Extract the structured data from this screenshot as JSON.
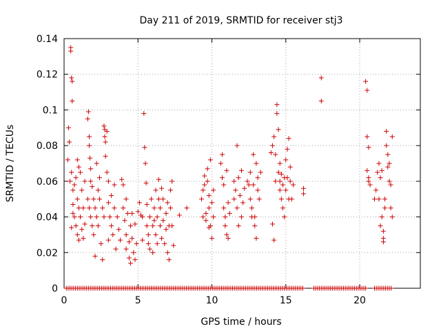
{
  "chart_data": {
    "type": "scatter",
    "title": "Day 211 of 2019, SRMTID for receiver stj3",
    "xlabel": "GPS time / hours",
    "ylabel": "SRMTID / TECUs",
    "xlim": [
      0,
      24.1
    ],
    "ylim": [
      0,
      0.14
    ],
    "x_ticks": [
      0,
      5,
      10,
      15,
      20
    ],
    "y_ticks": [
      0,
      0.02,
      0.04,
      0.06,
      0.08,
      0.1,
      0.12,
      0.14
    ],
    "x_tick_labels": [
      "0",
      "5",
      "10",
      "15",
      "20"
    ],
    "y_tick_labels": [
      "0",
      "0.02",
      "0.04",
      "0.06",
      "0.08",
      "0.1",
      "0.12",
      "0.14"
    ],
    "grid": true,
    "marker": "plus",
    "color": "#cc0000",
    "series": [
      {
        "name": "SRMTID",
        "points": [
          [
            0.25,
            0.072
          ],
          [
            0.3,
            0.09
          ],
          [
            0.35,
            0.082
          ],
          [
            0.45,
            0.133
          ],
          [
            0.45,
            0.135
          ],
          [
            0.5,
            0.118
          ],
          [
            0.55,
            0.116
          ],
          [
            0.55,
            0.105
          ],
          [
            0.4,
            0.06
          ],
          [
            0.5,
            0.065
          ],
          [
            0.6,
            0.055
          ],
          [
            0.6,
            0.047
          ],
          [
            0.7,
            0.058
          ],
          [
            0.7,
            0.04
          ],
          [
            0.8,
            0.062
          ],
          [
            0.8,
            0.035
          ],
          [
            0.9,
            0.05
          ],
          [
            0.9,
            0.03
          ],
          [
            1.0,
            0.045
          ],
          [
            1.0,
            0.027
          ],
          [
            1.1,
            0.04
          ],
          [
            1.1,
            0.065
          ],
          [
            1.2,
            0.033
          ],
          [
            1.2,
            0.055
          ],
          [
            1.3,
            0.045
          ],
          [
            1.3,
            0.028
          ],
          [
            0.5,
            0.034
          ],
          [
            0.6,
            0.042
          ],
          [
            0.9,
            0.072
          ],
          [
            1.0,
            0.068
          ],
          [
            1.4,
            0.036
          ],
          [
            1.4,
            0.06
          ],
          [
            1.6,
            0.095
          ],
          [
            1.65,
            0.099
          ],
          [
            1.7,
            0.085
          ],
          [
            1.7,
            0.08
          ],
          [
            1.75,
            0.073
          ],
          [
            1.8,
            0.067
          ],
          [
            1.8,
            0.06
          ],
          [
            1.9,
            0.057
          ],
          [
            1.6,
            0.05
          ],
          [
            1.7,
            0.045
          ],
          [
            1.8,
            0.04
          ],
          [
            1.9,
            0.035
          ],
          [
            2.0,
            0.05
          ],
          [
            2.0,
            0.03
          ],
          [
            2.1,
            0.045
          ],
          [
            2.1,
            0.018
          ],
          [
            2.2,
            0.04
          ],
          [
            2.3,
            0.055
          ],
          [
            2.3,
            0.035
          ],
          [
            2.4,
            0.05
          ],
          [
            2.5,
            0.025
          ],
          [
            2.6,
            0.045
          ],
          [
            2.6,
            0.016
          ],
          [
            2.7,
            0.04
          ],
          [
            2.7,
            0.091
          ],
          [
            2.75,
            0.089
          ],
          [
            2.75,
            0.085
          ],
          [
            2.8,
            0.082
          ],
          [
            2.9,
            0.088
          ],
          [
            2.8,
            0.074
          ],
          [
            2.9,
            0.065
          ],
          [
            3.0,
            0.06
          ],
          [
            3.0,
            0.048
          ],
          [
            3.1,
            0.04
          ],
          [
            3.2,
            0.035
          ],
          [
            3.2,
            0.052
          ],
          [
            3.3,
            0.03
          ],
          [
            3.4,
            0.045
          ],
          [
            3.5,
            0.022
          ],
          [
            3.6,
            0.04
          ],
          [
            3.7,
            0.033
          ],
          [
            3.8,
            0.027
          ],
          [
            3.9,
            0.061
          ],
          [
            4.0,
            0.058
          ],
          [
            4.0,
            0.045
          ],
          [
            4.1,
            0.038
          ],
          [
            4.2,
            0.05
          ],
          [
            4.2,
            0.03
          ],
          [
            4.3,
            0.042
          ],
          [
            4.4,
            0.026
          ],
          [
            4.4,
            0.017
          ],
          [
            4.5,
            0.035
          ],
          [
            4.5,
            0.014
          ],
          [
            4.6,
            0.028
          ],
          [
            4.7,
            0.02
          ],
          [
            4.8,
            0.036
          ],
          [
            4.8,
            0.016
          ],
          [
            4.9,
            0.025
          ],
          [
            4.6,
            0.042
          ],
          [
            4.2,
            0.022
          ],
          [
            3.4,
            0.058
          ],
          [
            3.0,
            0.027
          ],
          [
            2.4,
            0.062
          ],
          [
            2.2,
            0.07
          ],
          [
            5.0,
            0.043
          ],
          [
            5.1,
            0.048
          ],
          [
            5.2,
            0.041
          ],
          [
            5.3,
            0.04
          ],
          [
            5.4,
            0.098
          ],
          [
            5.45,
            0.079
          ],
          [
            5.5,
            0.07
          ],
          [
            5.55,
            0.059
          ],
          [
            5.3,
            0.027
          ],
          [
            5.6,
            0.035
          ],
          [
            5.6,
            0.047
          ],
          [
            5.7,
            0.03
          ],
          [
            5.7,
            0.025
          ],
          [
            5.8,
            0.04
          ],
          [
            5.8,
            0.022
          ],
          [
            5.9,
            0.05
          ],
          [
            6.0,
            0.035
          ],
          [
            6.0,
            0.02
          ],
          [
            6.1,
            0.045
          ],
          [
            6.2,
            0.03
          ],
          [
            6.2,
            0.055
          ],
          [
            6.3,
            0.04
          ],
          [
            6.3,
            0.025
          ],
          [
            6.4,
            0.05
          ],
          [
            6.4,
            0.061
          ],
          [
            6.5,
            0.035
          ],
          [
            6.5,
            0.045
          ],
          [
            6.6,
            0.028
          ],
          [
            6.7,
            0.038
          ],
          [
            6.7,
            0.05
          ],
          [
            6.8,
            0.025
          ],
          [
            6.9,
            0.042
          ],
          [
            6.9,
            0.033
          ],
          [
            7.0,
            0.02
          ],
          [
            7.0,
            0.048
          ],
          [
            7.1,
            0.035
          ],
          [
            7.1,
            0.016
          ],
          [
            7.2,
            0.045
          ],
          [
            7.2,
            0.055
          ],
          [
            7.3,
            0.035
          ],
          [
            7.3,
            0.06
          ],
          [
            7.4,
            0.024
          ],
          [
            6.1,
            0.038
          ],
          [
            6.6,
            0.056
          ],
          [
            7.8,
            0.041
          ],
          [
            8.3,
            0.045
          ],
          [
            9.3,
            0.05
          ],
          [
            9.4,
            0.055
          ],
          [
            9.5,
            0.058
          ],
          [
            9.5,
            0.063
          ],
          [
            9.6,
            0.042
          ],
          [
            9.7,
            0.067
          ],
          [
            9.7,
            0.06
          ],
          [
            9.8,
            0.052
          ],
          [
            9.8,
            0.045
          ],
          [
            9.9,
            0.072
          ],
          [
            9.9,
            0.035
          ],
          [
            10.0,
            0.048
          ],
          [
            10.0,
            0.028
          ],
          [
            10.1,
            0.04
          ],
          [
            10.1,
            0.055
          ],
          [
            9.4,
            0.04
          ],
          [
            9.6,
            0.038
          ],
          [
            9.8,
            0.034
          ],
          [
            10.6,
            0.07
          ],
          [
            10.7,
            0.075
          ],
          [
            10.7,
            0.062
          ],
          [
            10.8,
            0.058
          ],
          [
            10.8,
            0.045
          ],
          [
            10.9,
            0.04
          ],
          [
            10.9,
            0.035
          ],
          [
            11.0,
            0.03
          ],
          [
            11.0,
            0.066
          ],
          [
            11.1,
            0.048
          ],
          [
            11.1,
            0.028
          ],
          [
            11.2,
            0.042
          ],
          [
            11.5,
            0.06
          ],
          [
            11.5,
            0.05
          ],
          [
            11.6,
            0.055
          ],
          [
            11.7,
            0.08
          ],
          [
            11.7,
            0.045
          ],
          [
            11.8,
            0.062
          ],
          [
            11.8,
            0.035
          ],
          [
            11.9,
            0.052
          ],
          [
            12.0,
            0.066
          ],
          [
            12.0,
            0.04
          ],
          [
            12.1,
            0.048
          ],
          [
            12.2,
            0.056
          ],
          [
            12.4,
            0.06
          ],
          [
            12.6,
            0.065
          ],
          [
            12.6,
            0.05
          ],
          [
            12.7,
            0.045
          ],
          [
            12.8,
            0.058
          ],
          [
            12.8,
            0.075
          ],
          [
            12.9,
            0.04
          ],
          [
            12.9,
            0.035
          ],
          [
            13.0,
            0.07
          ],
          [
            13.0,
            0.028
          ],
          [
            13.1,
            0.062
          ],
          [
            13.1,
            0.055
          ],
          [
            13.2,
            0.05
          ],
          [
            13.3,
            0.065
          ],
          [
            12.7,
            0.04
          ],
          [
            12.5,
            0.058
          ],
          [
            14.0,
            0.076
          ],
          [
            14.1,
            0.08
          ],
          [
            14.1,
            0.036
          ],
          [
            14.2,
            0.027
          ],
          [
            14.2,
            0.085
          ],
          [
            14.3,
            0.075
          ],
          [
            14.4,
            0.103
          ],
          [
            14.4,
            0.098
          ],
          [
            14.5,
            0.089
          ],
          [
            14.5,
            0.065
          ],
          [
            14.6,
            0.06
          ],
          [
            14.6,
            0.055
          ],
          [
            14.7,
            0.05
          ],
          [
            14.7,
            0.064
          ],
          [
            14.8,
            0.058
          ],
          [
            14.8,
            0.045
          ],
          [
            14.9,
            0.062
          ],
          [
            14.9,
            0.04
          ],
          [
            15.0,
            0.072
          ],
          [
            15.0,
            0.055
          ],
          [
            15.1,
            0.078
          ],
          [
            15.1,
            0.062
          ],
          [
            15.2,
            0.084
          ],
          [
            15.2,
            0.05
          ],
          [
            15.3,
            0.068
          ],
          [
            15.3,
            0.06
          ],
          [
            15.4,
            0.05
          ],
          [
            15.5,
            0.058
          ],
          [
            16.2,
            0.056
          ],
          [
            16.2,
            0.053
          ],
          [
            14.3,
            0.06
          ],
          [
            14.6,
            0.07
          ],
          [
            17.4,
            0.118
          ],
          [
            17.4,
            0.105
          ],
          [
            20.4,
            0.116
          ],
          [
            20.5,
            0.111
          ],
          [
            20.5,
            0.085
          ],
          [
            20.6,
            0.079
          ],
          [
            20.5,
            0.066
          ],
          [
            20.6,
            0.062
          ],
          [
            20.6,
            0.06
          ],
          [
            20.7,
            0.058
          ],
          [
            21.0,
            0.05
          ],
          [
            21.1,
            0.055
          ],
          [
            21.2,
            0.065
          ],
          [
            21.3,
            0.07
          ],
          [
            21.4,
            0.062
          ],
          [
            21.5,
            0.066
          ],
          [
            21.5,
            0.04
          ],
          [
            21.6,
            0.032
          ],
          [
            21.6,
            0.028
          ],
          [
            21.6,
            0.026
          ],
          [
            21.7,
            0.05
          ],
          [
            21.7,
            0.045
          ],
          [
            21.8,
            0.088
          ],
          [
            21.8,
            0.08
          ],
          [
            21.9,
            0.075
          ],
          [
            21.9,
            0.068
          ],
          [
            22.0,
            0.07
          ],
          [
            22.0,
            0.06
          ],
          [
            22.1,
            0.058
          ],
          [
            22.1,
            0.045
          ],
          [
            22.2,
            0.04
          ],
          [
            22.2,
            0.085
          ],
          [
            21.3,
            0.05
          ],
          [
            21.4,
            0.035
          ]
        ],
        "zero_baseline_ranges": [
          [
            0.15,
            16.2
          ],
          [
            16.9,
            20.5
          ],
          [
            21.0,
            22.2
          ]
        ]
      }
    ]
  }
}
